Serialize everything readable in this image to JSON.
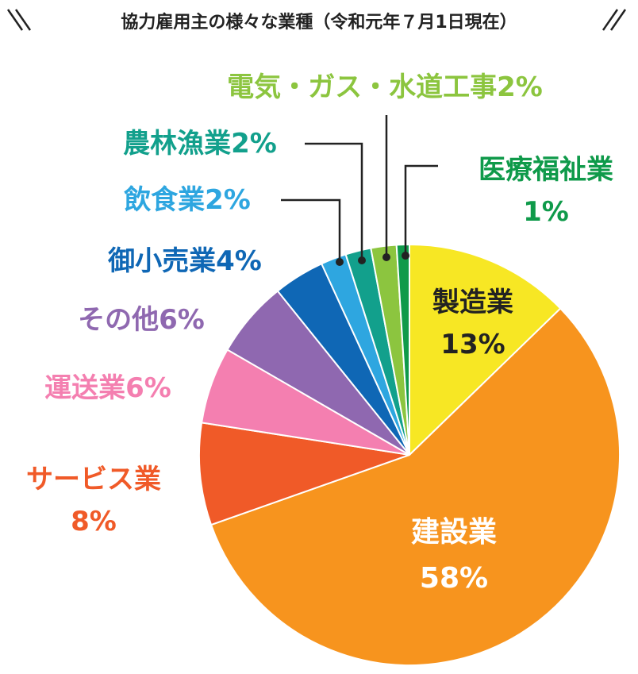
{
  "chart_data": {
    "type": "pie",
    "title": "協力雇用主の様々な業種（令和元年７月1日現在）",
    "slices": [
      {
        "label": "製造業",
        "value_label": "13%",
        "value": 13,
        "color": "#f7e724"
      },
      {
        "label": "建設業",
        "value_label": "58%",
        "value": 58,
        "color": "#f7941e"
      },
      {
        "label": "サービス業",
        "value_label": "8%",
        "value": 8,
        "color": "#f05a28"
      },
      {
        "label": "運送業",
        "value_label": "6%",
        "value": 6,
        "color": "#f47fb0"
      },
      {
        "label": "その他",
        "value_label": "6%",
        "value": 6,
        "color": "#8f68b0"
      },
      {
        "label": "御小売業",
        "value_label": "4%",
        "value": 4,
        "color": "#0f67b5"
      },
      {
        "label": "飲食業",
        "value_label": "2%",
        "value": 2,
        "color": "#2ea6e0"
      },
      {
        "label": "農林漁業",
        "value_label": "2%",
        "value": 2,
        "color": "#12a08c"
      },
      {
        "label": "電気・ガス・水道工事",
        "value_label": "2%",
        "value": 2,
        "color": "#8cc53f"
      },
      {
        "label": "医療福祉業",
        "value_label": "1%",
        "value": 1,
        "color": "#0f9a4a"
      }
    ],
    "label_colors": {
      "製造業": "#222222",
      "建設業": "#ffffff",
      "サービス業": "#f05a28",
      "運送業": "#f47fb0",
      "その他": "#8f68b0",
      "御小売業": "#0f67b5",
      "飲食業": "#2ea6e0",
      "農林漁業": "#12a08c",
      "電気・ガス・水道工事": "#8cc53f",
      "医療福祉業": "#0f9a4a"
    }
  }
}
